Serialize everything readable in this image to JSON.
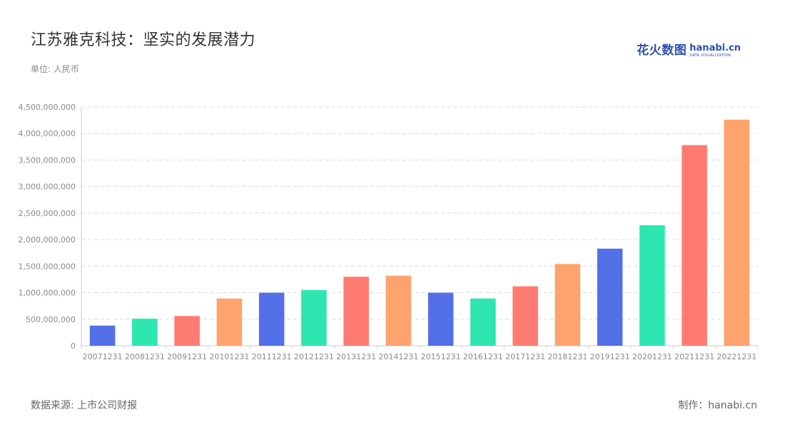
{
  "header": {
    "title": "江苏雅克科技：坚实的发展潜力",
    "unit": "单位: 人民币"
  },
  "brand": {
    "cn": "花火数图",
    "en": "hanabi.cn",
    "sub": "DATA VISUALIZATION",
    "color": "#2b4fb3"
  },
  "footer": {
    "source": "数据来源: 上市公司财报",
    "credit": "制作：hanabi.cn"
  },
  "palette": [
    "#5470e8",
    "#2ee6b0",
    "#ff7b72",
    "#ffa36e"
  ],
  "chart_data": {
    "type": "bar",
    "title": "",
    "xlabel": "",
    "ylabel": "",
    "ylim": [
      0,
      4500000000
    ],
    "yticks": [
      0,
      500000000,
      1000000000,
      1500000000,
      2000000000,
      2500000000,
      3000000000,
      3500000000,
      4000000000,
      4500000000
    ],
    "grid": true,
    "categories": [
      "20071231",
      "20081231",
      "20091231",
      "20101231",
      "20111231",
      "20121231",
      "20131231",
      "20141231",
      "20151231",
      "20161231",
      "20171231",
      "20181231",
      "20191231",
      "20201231",
      "20211231",
      "20221231"
    ],
    "values": [
      380000000,
      510000000,
      560000000,
      890000000,
      1000000000,
      1050000000,
      1300000000,
      1320000000,
      1000000000,
      890000000,
      1120000000,
      1540000000,
      1830000000,
      2270000000,
      3780000000,
      4260000000
    ],
    "bar_colors": [
      "#5470e8",
      "#2ee6b0",
      "#ff7b72",
      "#ffa36e",
      "#5470e8",
      "#2ee6b0",
      "#ff7b72",
      "#ffa36e",
      "#5470e8",
      "#2ee6b0",
      "#ff7b72",
      "#ffa36e",
      "#5470e8",
      "#2ee6b0",
      "#ff7b72",
      "#ffa36e"
    ]
  }
}
